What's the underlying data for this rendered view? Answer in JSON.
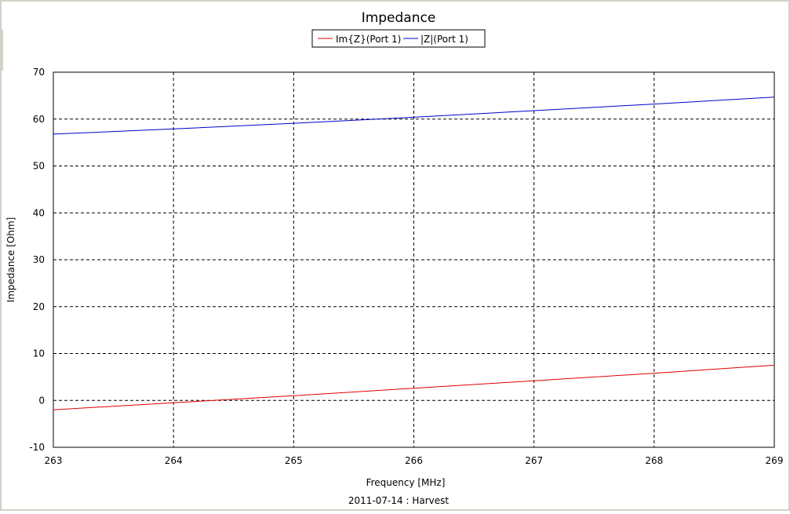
{
  "chart_data": {
    "type": "line",
    "title": "Impedance",
    "xlabel": "Frequency [MHz]",
    "ylabel": "Impedance [Ohm]",
    "footer": "2011-07-14 : Harvest",
    "xlim": [
      263,
      269
    ],
    "ylim": [
      -10,
      70
    ],
    "x_ticks": [
      "263",
      "264",
      "265",
      "266",
      "267",
      "268",
      "269"
    ],
    "y_ticks": [
      "70",
      "60",
      "50",
      "40",
      "30",
      "20",
      "10",
      "0",
      "-10"
    ],
    "x_tick_values": [
      263,
      264,
      265,
      266,
      267,
      268,
      269
    ],
    "y_tick_values": [
      70,
      60,
      50,
      40,
      30,
      20,
      10,
      0,
      -10
    ],
    "grid": true,
    "legend_position": "top-center",
    "series": [
      {
        "name": "Im{Z}(Port 1)",
        "color": "#e00000",
        "x": [
          263,
          264,
          265,
          266,
          267,
          268,
          269
        ],
        "y": [
          -2.0,
          -0.5,
          1.0,
          2.6,
          4.2,
          5.8,
          7.5
        ]
      },
      {
        "name": "|Z|(Port 1)",
        "color": "#0000cc",
        "x": [
          263,
          264,
          265,
          266,
          267,
          268,
          269
        ],
        "y": [
          56.8,
          57.9,
          59.1,
          60.4,
          61.8,
          63.2,
          64.7
        ]
      }
    ]
  }
}
